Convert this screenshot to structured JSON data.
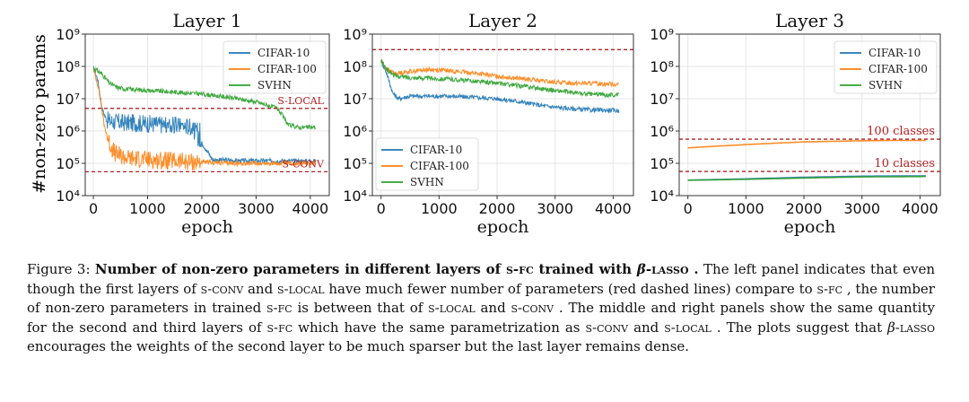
{
  "figure": {
    "ylabel": "#non-zero params",
    "xlabel": "epoch"
  },
  "chart_data": [
    {
      "type": "line",
      "title": "Layer 1",
      "xlabel": "epoch",
      "ylabel": "#non-zero params",
      "yscale": "log",
      "xlim": [
        -150,
        4350
      ],
      "ylim": [
        10000,
        1000000000
      ],
      "xticks": [
        "0",
        "1000",
        "2000",
        "3000",
        "4000"
      ],
      "yticks": [
        "10^4",
        "10^5",
        "10^6",
        "10^7",
        "10^8",
        "10^9"
      ],
      "grid": true,
      "legend": {
        "placement": "top-right",
        "entries": [
          "CIFAR-10",
          "CIFAR-100",
          "SVHN"
        ]
      },
      "series": [
        {
          "name": "CIFAR-10",
          "color": "#1f77b4",
          "noisy": true,
          "x": [
            0,
            80,
            160,
            240,
            320,
            400,
            600,
            1000,
            1400,
            1800,
            2200,
            2700,
            3200,
            3700,
            4100
          ],
          "y": [
            90000000,
            40000000,
            5000000,
            2200000,
            2000000,
            1900000,
            1800000,
            1700000,
            1500000,
            1400000,
            130000,
            120000,
            120000,
            118000,
            118000
          ]
        },
        {
          "name": "CIFAR-100",
          "color": "#ff7f0e",
          "noisy": true,
          "x": [
            0,
            100,
            200,
            300,
            400,
            600,
            1000,
            1400,
            1800,
            2200,
            2700,
            3200,
            3700,
            4100
          ],
          "y": [
            90000000,
            20000000,
            1500000,
            400000,
            200000,
            150000,
            130000,
            120000,
            110000,
            105000,
            100000,
            100000,
            100000,
            100000
          ]
        },
        {
          "name": "SVHN",
          "color": "#2ca02c",
          "noisy": true,
          "x": [
            0,
            150,
            300,
            450,
            600,
            1000,
            1500,
            2000,
            2500,
            3000,
            3400,
            3600,
            3800,
            4100
          ],
          "y": [
            90000000,
            60000000,
            30000000,
            22000000,
            20000000,
            18000000,
            16000000,
            14000000,
            11000000,
            8000000,
            5000000,
            1500000,
            1300000,
            1300000
          ]
        }
      ],
      "hlines": [
        {
          "label": "S-LOCAL",
          "y": 5000000,
          "color": "#b22222"
        },
        {
          "label": "S-CONV",
          "y": 55000,
          "color": "#b22222"
        }
      ]
    },
    {
      "type": "line",
      "title": "Layer 2",
      "xlabel": "epoch",
      "yscale": "log",
      "xlim": [
        -150,
        4350
      ],
      "ylim": [
        10000,
        1000000000
      ],
      "xticks": [
        "0",
        "1000",
        "2000",
        "3000",
        "4000"
      ],
      "yticks": [
        "10^4",
        "10^5",
        "10^6",
        "10^7",
        "10^8",
        "10^9"
      ],
      "grid": true,
      "legend": {
        "placement": "bottom-left",
        "entries": [
          "CIFAR-10",
          "CIFAR-100",
          "SVHN"
        ]
      },
      "series": [
        {
          "name": "CIFAR-10",
          "color": "#1f77b4",
          "noisy": true,
          "x": [
            0,
            100,
            200,
            300,
            500,
            800,
            1200,
            1600,
            2000,
            2400,
            2800,
            3200,
            3600,
            4100
          ],
          "y": [
            150000000,
            60000000,
            15000000,
            10000000,
            12000000,
            12000000,
            12000000,
            11000000,
            10000000,
            8000000,
            6000000,
            5000000,
            4500000,
            4300000
          ]
        },
        {
          "name": "CIFAR-100",
          "color": "#ff7f0e",
          "noisy": true,
          "x": [
            0,
            100,
            250,
            500,
            800,
            1100,
            1500,
            2000,
            2500,
            3000,
            3500,
            4100
          ],
          "y": [
            150000000,
            80000000,
            60000000,
            70000000,
            80000000,
            75000000,
            65000000,
            50000000,
            40000000,
            32000000,
            30000000,
            28000000
          ]
        },
        {
          "name": "SVHN",
          "color": "#2ca02c",
          "noisy": true,
          "x": [
            0,
            100,
            250,
            500,
            800,
            1200,
            1600,
            2000,
            2500,
            3000,
            3500,
            4100
          ],
          "y": [
            150000000,
            80000000,
            50000000,
            45000000,
            43000000,
            40000000,
            35000000,
            30000000,
            24000000,
            18000000,
            14000000,
            13000000
          ]
        }
      ],
      "hlines": [
        {
          "label": "",
          "y": 330000000,
          "color": "#b22222"
        }
      ]
    },
    {
      "type": "line",
      "title": "Layer 3",
      "xlabel": "epoch",
      "yscale": "log",
      "xlim": [
        -150,
        4350
      ],
      "ylim": [
        10000,
        1000000000
      ],
      "xticks": [
        "0",
        "1000",
        "2000",
        "3000",
        "4000"
      ],
      "yticks": [
        "10^4",
        "10^5",
        "10^6",
        "10^7",
        "10^8",
        "10^9"
      ],
      "grid": true,
      "legend": {
        "placement": "top-right",
        "entries": [
          "CIFAR-10",
          "CIFAR-100",
          "SVHN"
        ]
      },
      "series": [
        {
          "name": "CIFAR-10",
          "color": "#1f77b4",
          "noisy": false,
          "x": [
            0,
            1000,
            2000,
            3000,
            4100
          ],
          "y": [
            30000,
            33000,
            37000,
            40000,
            41000
          ]
        },
        {
          "name": "CIFAR-100",
          "color": "#ff7f0e",
          "noisy": false,
          "x": [
            0,
            500,
            1000,
            1500,
            2000,
            2500,
            3000,
            3500,
            4100
          ],
          "y": [
            300000,
            340000,
            380000,
            420000,
            460000,
            480000,
            500000,
            510000,
            510000
          ]
        },
        {
          "name": "SVHN",
          "color": "#2ca02c",
          "noisy": false,
          "x": [
            0,
            1000,
            2000,
            3000,
            4100
          ],
          "y": [
            30000,
            32000,
            35000,
            38000,
            39000
          ]
        }
      ],
      "hlines": [
        {
          "label": "100 classes",
          "y": 560000,
          "color": "#b22222"
        },
        {
          "label": "10 classes",
          "y": 56000,
          "color": "#b22222"
        }
      ]
    }
  ],
  "caption": {
    "lead": "Figure 3: ",
    "bold_a": "Number of non-zero parameters in different layers of ",
    "bold_sfc": "s-fc",
    "bold_b": " trained with ",
    "bold_beta": "β",
    "bold_lasso": "-lasso",
    "bold_end": " .",
    "p1": " The left panel indicates that even though the first layers of ",
    "sc_sconv_1": "s-conv",
    "p2": " and ",
    "sc_slocal_1": "s-local",
    "p3": " have much fewer number of parameters (red dashed lines) compare to ",
    "sc_sfc_1": "s-fc",
    "p4": " , the number of non-zero parameters in trained ",
    "sc_sfc_2": "s-fc",
    "p5": " is between that of ",
    "sc_slocal_2": "s-local",
    "p6": " and ",
    "sc_sconv_2": "s-conv",
    "p7": " . The middle and right panels show the same quantity for the second and third layers of ",
    "sc_sfc_3": "s-fc",
    "p8": " which have the same parametrization as ",
    "sc_sconv_3": "s-conv",
    "p9": " and ",
    "sc_slocal_3": "s-local",
    "p10": " . The plots suggest that ",
    "it_beta": "β",
    "sc_lasso": "-lasso",
    "p11": " encourages the weights of the second layer to be much sparser but the last layer remains dense."
  }
}
